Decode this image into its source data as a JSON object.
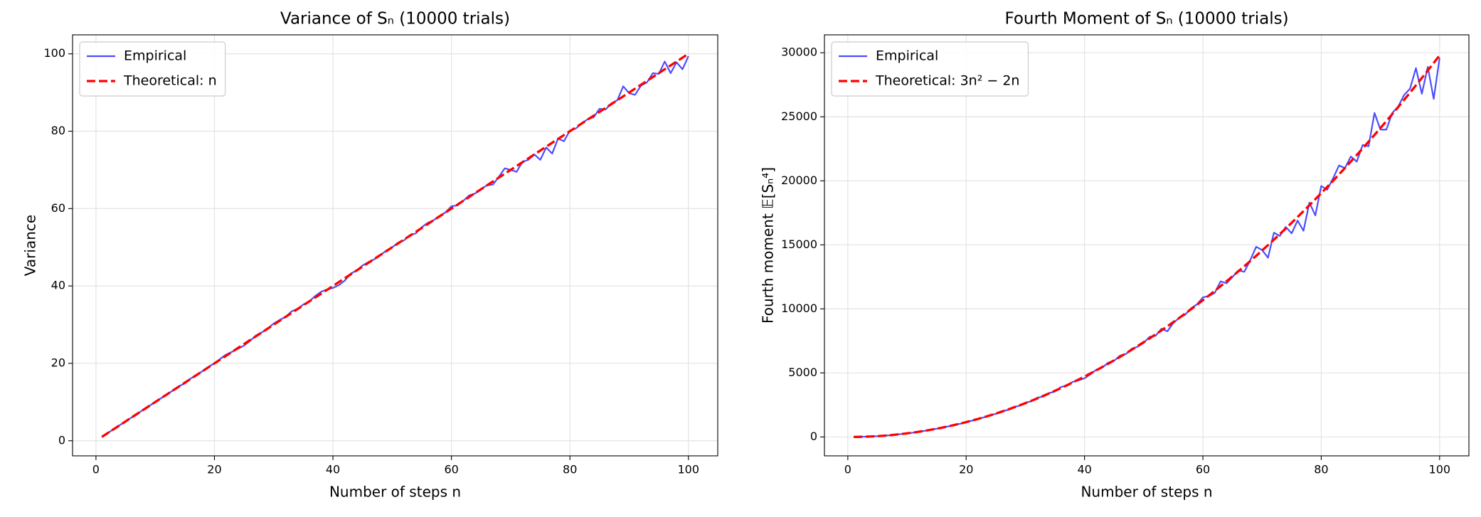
{
  "chart_data": [
    {
      "type": "line",
      "title": "Variance of Sₙ (10000 trials)",
      "xlabel": "Number of steps n",
      "ylabel": "Variance",
      "x": [
        1,
        2,
        3,
        4,
        5,
        6,
        7,
        8,
        9,
        10,
        11,
        12,
        13,
        14,
        15,
        16,
        17,
        18,
        19,
        20,
        21,
        22,
        23,
        24,
        25,
        26,
        27,
        28,
        29,
        30,
        31,
        32,
        33,
        34,
        35,
        36,
        37,
        38,
        39,
        40,
        41,
        42,
        43,
        44,
        45,
        46,
        47,
        48,
        49,
        50,
        51,
        52,
        53,
        54,
        55,
        56,
        57,
        58,
        59,
        60,
        61,
        62,
        63,
        64,
        65,
        66,
        67,
        68,
        69,
        70,
        71,
        72,
        73,
        74,
        75,
        76,
        77,
        78,
        79,
        80,
        81,
        82,
        83,
        84,
        85,
        86,
        87,
        88,
        89,
        90,
        91,
        92,
        93,
        94,
        95,
        96,
        97,
        98,
        99,
        100
      ],
      "series": [
        {
          "name": "Empirical",
          "color": "#4d4dff",
          "linestyle": "solid",
          "values": [
            1.0,
            2.0,
            3.0,
            4.0,
            5.0,
            6.0,
            7.0,
            8.0,
            9.0,
            10.0,
            11.0,
            12.0,
            13.0,
            14.1,
            14.8,
            16.1,
            17.0,
            18.0,
            19.1,
            20.0,
            21.2,
            22.3,
            23.0,
            23.8,
            24.6,
            25.8,
            27.2,
            28.0,
            29.0,
            30.3,
            31.2,
            32.0,
            33.4,
            34.1,
            35.2,
            36.0,
            37.4,
            38.5,
            39.1,
            39.5,
            40.2,
            41.4,
            43.2,
            44.0,
            45.3,
            46.2,
            46.9,
            48.0,
            49.1,
            50.0,
            51.2,
            51.8,
            53.1,
            53.6,
            55.2,
            56.3,
            57.0,
            58.1,
            59.0,
            60.6,
            60.8,
            62.0,
            63.4,
            63.9,
            65.1,
            66.0,
            66.2,
            68.2,
            70.4,
            70.0,
            69.5,
            72.1,
            72.6,
            74.0,
            72.6,
            75.8,
            74.2,
            78.1,
            77.4,
            80.2,
            80.7,
            82.0,
            83.1,
            83.6,
            85.8,
            85.6,
            87.2,
            88.0,
            91.6,
            89.8,
            89.4,
            91.8,
            92.6,
            95.0,
            94.8,
            98.0,
            95.0,
            97.8,
            96.0,
            99.4
          ]
        },
        {
          "name": "Theoretical: n",
          "color": "#ff0000",
          "linestyle": "dashed",
          "values": [
            1,
            2,
            3,
            4,
            5,
            6,
            7,
            8,
            9,
            10,
            11,
            12,
            13,
            14,
            15,
            16,
            17,
            18,
            19,
            20,
            21,
            22,
            23,
            24,
            25,
            26,
            27,
            28,
            29,
            30,
            31,
            32,
            33,
            34,
            35,
            36,
            37,
            38,
            39,
            40,
            41,
            42,
            43,
            44,
            45,
            46,
            47,
            48,
            49,
            50,
            51,
            52,
            53,
            54,
            55,
            56,
            57,
            58,
            59,
            60,
            61,
            62,
            63,
            64,
            65,
            66,
            67,
            68,
            69,
            70,
            71,
            72,
            73,
            74,
            75,
            76,
            77,
            78,
            79,
            80,
            81,
            82,
            83,
            84,
            85,
            86,
            87,
            88,
            89,
            90,
            91,
            92,
            93,
            94,
            95,
            96,
            97,
            98,
            99,
            100
          ]
        }
      ],
      "xlim": [
        -3.95,
        104.95
      ],
      "xticks": [
        0,
        20,
        40,
        60,
        80,
        100
      ],
      "ylim": [
        -3.9,
        104.9
      ],
      "yticks": [
        0,
        20,
        40,
        60,
        80,
        100
      ],
      "grid": true,
      "legend": "upper-left"
    },
    {
      "type": "line",
      "title": "Fourth Moment of Sₙ (10000 trials)",
      "xlabel": "Number of steps n",
      "ylabel": "Fourth moment 𝔼[Sₙ⁴]",
      "x": [
        1,
        2,
        3,
        4,
        5,
        6,
        7,
        8,
        9,
        10,
        11,
        12,
        13,
        14,
        15,
        16,
        17,
        18,
        19,
        20,
        21,
        22,
        23,
        24,
        25,
        26,
        27,
        28,
        29,
        30,
        31,
        32,
        33,
        34,
        35,
        36,
        37,
        38,
        39,
        40,
        41,
        42,
        43,
        44,
        45,
        46,
        47,
        48,
        49,
        50,
        51,
        52,
        53,
        54,
        55,
        56,
        57,
        58,
        59,
        60,
        61,
        62,
        63,
        64,
        65,
        66,
        67,
        68,
        69,
        70,
        71,
        72,
        73,
        74,
        75,
        76,
        77,
        78,
        79,
        80,
        81,
        82,
        83,
        84,
        85,
        86,
        87,
        88,
        89,
        90,
        91,
        92,
        93,
        94,
        95,
        96,
        97,
        98,
        99,
        100
      ],
      "series": [
        {
          "name": "Empirical",
          "color": "#4d4dff",
          "linestyle": "solid",
          "values": [
            1,
            8,
            21,
            41,
            64,
            98,
            130,
            180,
            222,
            283,
            335,
            412,
            478,
            566,
            640,
            745,
            826,
            950,
            1030,
            1175,
            1270,
            1420,
            1530,
            1700,
            1800,
            2010,
            2100,
            2340,
            2430,
            2680,
            2780,
            3060,
            3150,
            3420,
            3550,
            3900,
            3990,
            4300,
            4420,
            4580,
            4900,
            5250,
            5420,
            5800,
            5950,
            6350,
            6480,
            6900,
            7050,
            7350,
            7820,
            7900,
            8450,
            8250,
            8900,
            9300,
            9550,
            10050,
            10350,
            10900,
            11000,
            11250,
            12150,
            12000,
            12500,
            13000,
            12900,
            13800,
            14850,
            14600,
            14000,
            15950,
            15700,
            16400,
            15900,
            16900,
            16100,
            18300,
            17300,
            19600,
            19300,
            20200,
            21200,
            21000,
            21900,
            21500,
            22800,
            22700,
            25300,
            24000,
            24000,
            25300,
            25800,
            26700,
            27200,
            28800,
            26800,
            28900,
            26400,
            29600
          ]
        },
        {
          "name": "Theoretical: 3n² − 2n",
          "color": "#ff0000",
          "linestyle": "dashed",
          "values": [
            1,
            8,
            21,
            40,
            65,
            96,
            133,
            176,
            225,
            280,
            341,
            408,
            481,
            560,
            645,
            736,
            833,
            936,
            1045,
            1160,
            1281,
            1408,
            1541,
            1680,
            1825,
            1976,
            2133,
            2296,
            2465,
            2640,
            2821,
            3008,
            3201,
            3400,
            3605,
            3816,
            4033,
            4256,
            4485,
            4720,
            4961,
            5208,
            5461,
            5720,
            5985,
            6256,
            6533,
            6816,
            7105,
            7400,
            7701,
            8008,
            8321,
            8640,
            8965,
            9296,
            9633,
            9976,
            10325,
            10680,
            11041,
            11408,
            11781,
            12160,
            12545,
            12936,
            13333,
            13736,
            14145,
            14560,
            14981,
            15408,
            15841,
            16280,
            16725,
            17176,
            17633,
            18096,
            18565,
            19040,
            19521,
            20008,
            20501,
            21000,
            21505,
            22016,
            22533,
            23056,
            23585,
            24120,
            24661,
            25208,
            25761,
            26320,
            26885,
            27456,
            28033,
            28616,
            29205,
            29800
          ]
        }
      ],
      "xlim": [
        -3.95,
        104.95
      ],
      "xticks": [
        0,
        20,
        40,
        60,
        80,
        100
      ],
      "ylim": [
        -1474,
        31400
      ],
      "yticks": [
        0,
        5000,
        10000,
        15000,
        20000,
        25000,
        30000
      ],
      "grid": true,
      "legend": "upper-left"
    }
  ]
}
